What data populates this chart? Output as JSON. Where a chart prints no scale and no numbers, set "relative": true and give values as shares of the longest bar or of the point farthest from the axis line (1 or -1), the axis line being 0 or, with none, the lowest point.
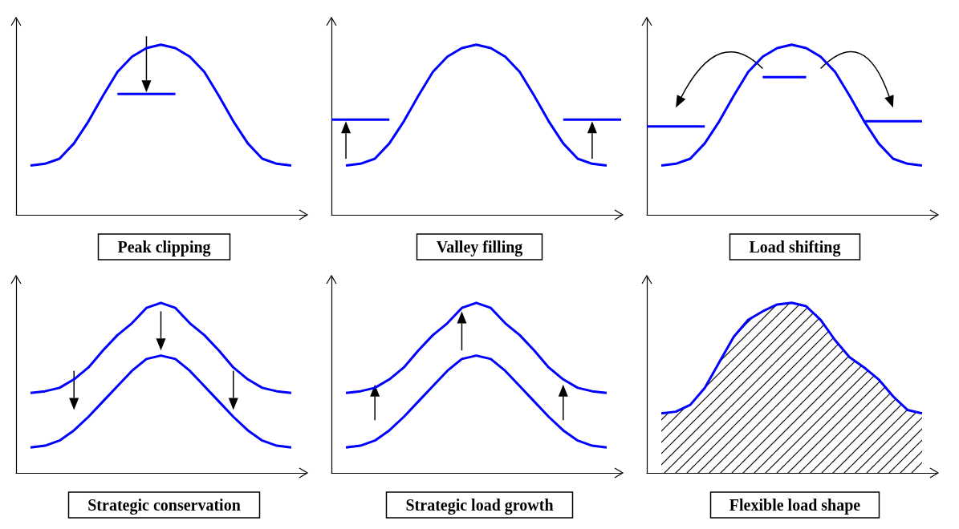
{
  "chart_data": [
    {
      "type": "line",
      "title": "Peak clipping",
      "relative": true,
      "marker": "none",
      "categories": [
        null,
        null,
        null,
        null,
        null,
        null,
        null,
        null,
        null,
        null,
        null,
        null,
        null,
        null,
        null,
        null,
        null,
        null,
        null,
        null,
        null
      ],
      "series": [
        {
          "color": "#0000ff",
          "values": [
            null,
            0.29,
            0.3,
            0.33,
            0.42,
            0.55,
            0.7,
            0.84,
            0.93,
            0.98,
            1.0,
            0.98,
            0.93,
            0.84,
            0.7,
            0.55,
            0.42,
            0.33,
            0.3,
            0.29,
            null
          ]
        },
        {
          "color": "#0000ff",
          "values": [
            null,
            null,
            null,
            null,
            null,
            null,
            null,
            0.71,
            0.71,
            0.71,
            0.71,
            0.71,
            null,
            null,
            null,
            null,
            null,
            null,
            null,
            null,
            null
          ]
        }
      ]
    },
    {
      "type": "line",
      "title": "Valley filling",
      "relative": true,
      "marker": "none",
      "categories": [
        null,
        null,
        null,
        null,
        null,
        null,
        null,
        null,
        null,
        null,
        null,
        null,
        null,
        null,
        null,
        null,
        null,
        null,
        null,
        null,
        null
      ],
      "series": [
        {
          "color": "#0000ff",
          "values": [
            null,
            0.29,
            0.3,
            0.33,
            0.42,
            0.55,
            0.7,
            0.84,
            0.93,
            0.98,
            1.0,
            0.98,
            0.93,
            0.84,
            0.7,
            0.55,
            0.42,
            0.33,
            0.3,
            0.29,
            null
          ]
        },
        {
          "color": "#0000ff",
          "values": [
            0.56,
            0.56,
            0.56,
            0.56,
            0.56,
            null,
            null,
            null,
            null,
            null,
            null,
            null,
            null,
            null,
            null,
            null,
            null,
            null,
            null,
            null,
            null
          ]
        },
        {
          "color": "#0000ff",
          "values": [
            null,
            null,
            null,
            null,
            null,
            null,
            null,
            null,
            null,
            null,
            null,
            null,
            null,
            null,
            null,
            null,
            0.56,
            0.56,
            0.56,
            0.56,
            0.56
          ]
        }
      ]
    },
    {
      "type": "line",
      "title": "Load shifting",
      "relative": true,
      "marker": "none",
      "categories": [
        null,
        null,
        null,
        null,
        null,
        null,
        null,
        null,
        null,
        null,
        null,
        null,
        null,
        null,
        null,
        null,
        null,
        null,
        null,
        null,
        null
      ],
      "series": [
        {
          "color": "#0000ff",
          "values": [
            null,
            0.29,
            0.3,
            0.33,
            0.42,
            0.55,
            0.7,
            0.84,
            0.93,
            0.98,
            1.0,
            0.98,
            0.93,
            0.84,
            0.7,
            0.55,
            0.42,
            0.33,
            0.3,
            0.29,
            null
          ]
        },
        {
          "color": "#0000ff",
          "values": [
            0.52,
            0.52,
            0.52,
            0.52,
            0.52,
            null,
            null,
            null,
            null,
            null,
            null,
            null,
            null,
            null,
            null,
            null,
            null,
            null,
            null,
            null,
            null
          ]
        },
        {
          "color": "#0000ff",
          "values": [
            null,
            null,
            null,
            null,
            null,
            null,
            null,
            null,
            0.81,
            0.81,
            0.81,
            0.81,
            null,
            null,
            null,
            null,
            null,
            null,
            null,
            null,
            null
          ]
        },
        {
          "color": "#0000ff",
          "values": [
            null,
            null,
            null,
            null,
            null,
            null,
            null,
            null,
            null,
            null,
            null,
            null,
            null,
            null,
            null,
            0.55,
            0.55,
            0.55,
            0.55,
            0.55,
            null
          ]
        }
      ]
    },
    {
      "type": "line",
      "title": "Strategic conservation",
      "relative": true,
      "marker": "none",
      "categories": [
        null,
        null,
        null,
        null,
        null,
        null,
        null,
        null,
        null,
        null,
        null,
        null,
        null,
        null,
        null,
        null,
        null,
        null,
        null,
        null,
        null
      ],
      "series": [
        {
          "color": "#0000ff",
          "values": [
            null,
            0.47,
            0.48,
            0.5,
            0.55,
            0.62,
            0.72,
            0.81,
            0.88,
            0.97,
            1.0,
            0.97,
            0.88,
            0.81,
            0.72,
            0.62,
            0.55,
            0.5,
            0.48,
            0.47,
            null
          ]
        },
        {
          "color": "#0000ff",
          "values": [
            null,
            0.15,
            0.16,
            0.19,
            0.25,
            0.33,
            0.42,
            0.51,
            0.6,
            0.67,
            0.69,
            0.67,
            0.6,
            0.51,
            0.42,
            0.33,
            0.25,
            0.19,
            0.16,
            0.15,
            null
          ]
        }
      ]
    },
    {
      "type": "line",
      "title": "Strategic load growth",
      "relative": true,
      "marker": "none",
      "categories": [
        null,
        null,
        null,
        null,
        null,
        null,
        null,
        null,
        null,
        null,
        null,
        null,
        null,
        null,
        null,
        null,
        null,
        null,
        null,
        null,
        null
      ],
      "series": [
        {
          "color": "#0000ff",
          "values": [
            null,
            0.47,
            0.48,
            0.5,
            0.55,
            0.62,
            0.72,
            0.81,
            0.88,
            0.97,
            1.0,
            0.97,
            0.88,
            0.81,
            0.72,
            0.62,
            0.55,
            0.5,
            0.48,
            0.47,
            null
          ]
        },
        {
          "color": "#0000ff",
          "values": [
            null,
            0.15,
            0.16,
            0.19,
            0.25,
            0.33,
            0.42,
            0.51,
            0.6,
            0.67,
            0.69,
            0.67,
            0.6,
            0.51,
            0.42,
            0.33,
            0.25,
            0.19,
            0.16,
            0.15,
            null
          ]
        }
      ]
    },
    {
      "type": "area",
      "title": "Flexible load shape",
      "relative": true,
      "marker": "none",
      "categories": [
        null,
        null,
        null,
        null,
        null,
        null,
        null,
        null,
        null,
        null,
        null,
        null,
        null,
        null,
        null,
        null,
        null,
        null,
        null,
        null,
        null
      ],
      "series": [
        {
          "color": "#0000ff",
          "values": [
            null,
            0.35,
            0.36,
            0.4,
            0.5,
            0.65,
            0.8,
            0.9,
            0.95,
            0.99,
            1.0,
            0.98,
            0.9,
            0.78,
            0.68,
            0.62,
            0.55,
            0.45,
            0.37,
            0.35,
            null
          ]
        }
      ]
    }
  ]
}
